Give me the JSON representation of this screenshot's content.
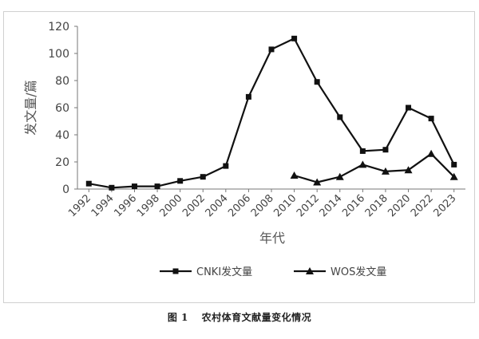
{
  "caption": {
    "figure_number": "图 1",
    "title": "农村体育文献量变化情况"
  },
  "chart_data": {
    "type": "line",
    "title": "",
    "xlabel": "年代",
    "ylabel": "发文量/篇",
    "x_tick_labels": [
      "1992",
      "1994",
      "1996",
      "1998",
      "2000",
      "2002",
      "2004",
      "2006",
      "2008",
      "2010",
      "2012",
      "2014",
      "2016",
      "2018",
      "2020",
      "2022",
      "2023"
    ],
    "ylim": [
      0,
      120
    ],
    "y_ticks": [
      0,
      20,
      40,
      60,
      80,
      100,
      120
    ],
    "grid": false,
    "legend_position": "bottom",
    "series": [
      {
        "name": "CNKI发文量",
        "marker": "square",
        "color": "#111111",
        "x": [
          "1992",
          "1994",
          "1996",
          "1998",
          "2000",
          "2002",
          "2004",
          "2006",
          "2008",
          "2010",
          "2012",
          "2014",
          "2016",
          "2018",
          "2020",
          "2022",
          "2023"
        ],
        "values": [
          4,
          1,
          2,
          2,
          6,
          9,
          17,
          68,
          103,
          111,
          79,
          53,
          28,
          29,
          60,
          52,
          18
        ]
      },
      {
        "name": "WOS发文量",
        "marker": "triangle",
        "color": "#111111",
        "x": [
          "2010",
          "2012",
          "2014",
          "2016",
          "2018",
          "2020",
          "2022",
          "2023"
        ],
        "values": [
          10,
          5,
          9,
          18,
          13,
          14,
          26,
          9
        ]
      }
    ]
  }
}
